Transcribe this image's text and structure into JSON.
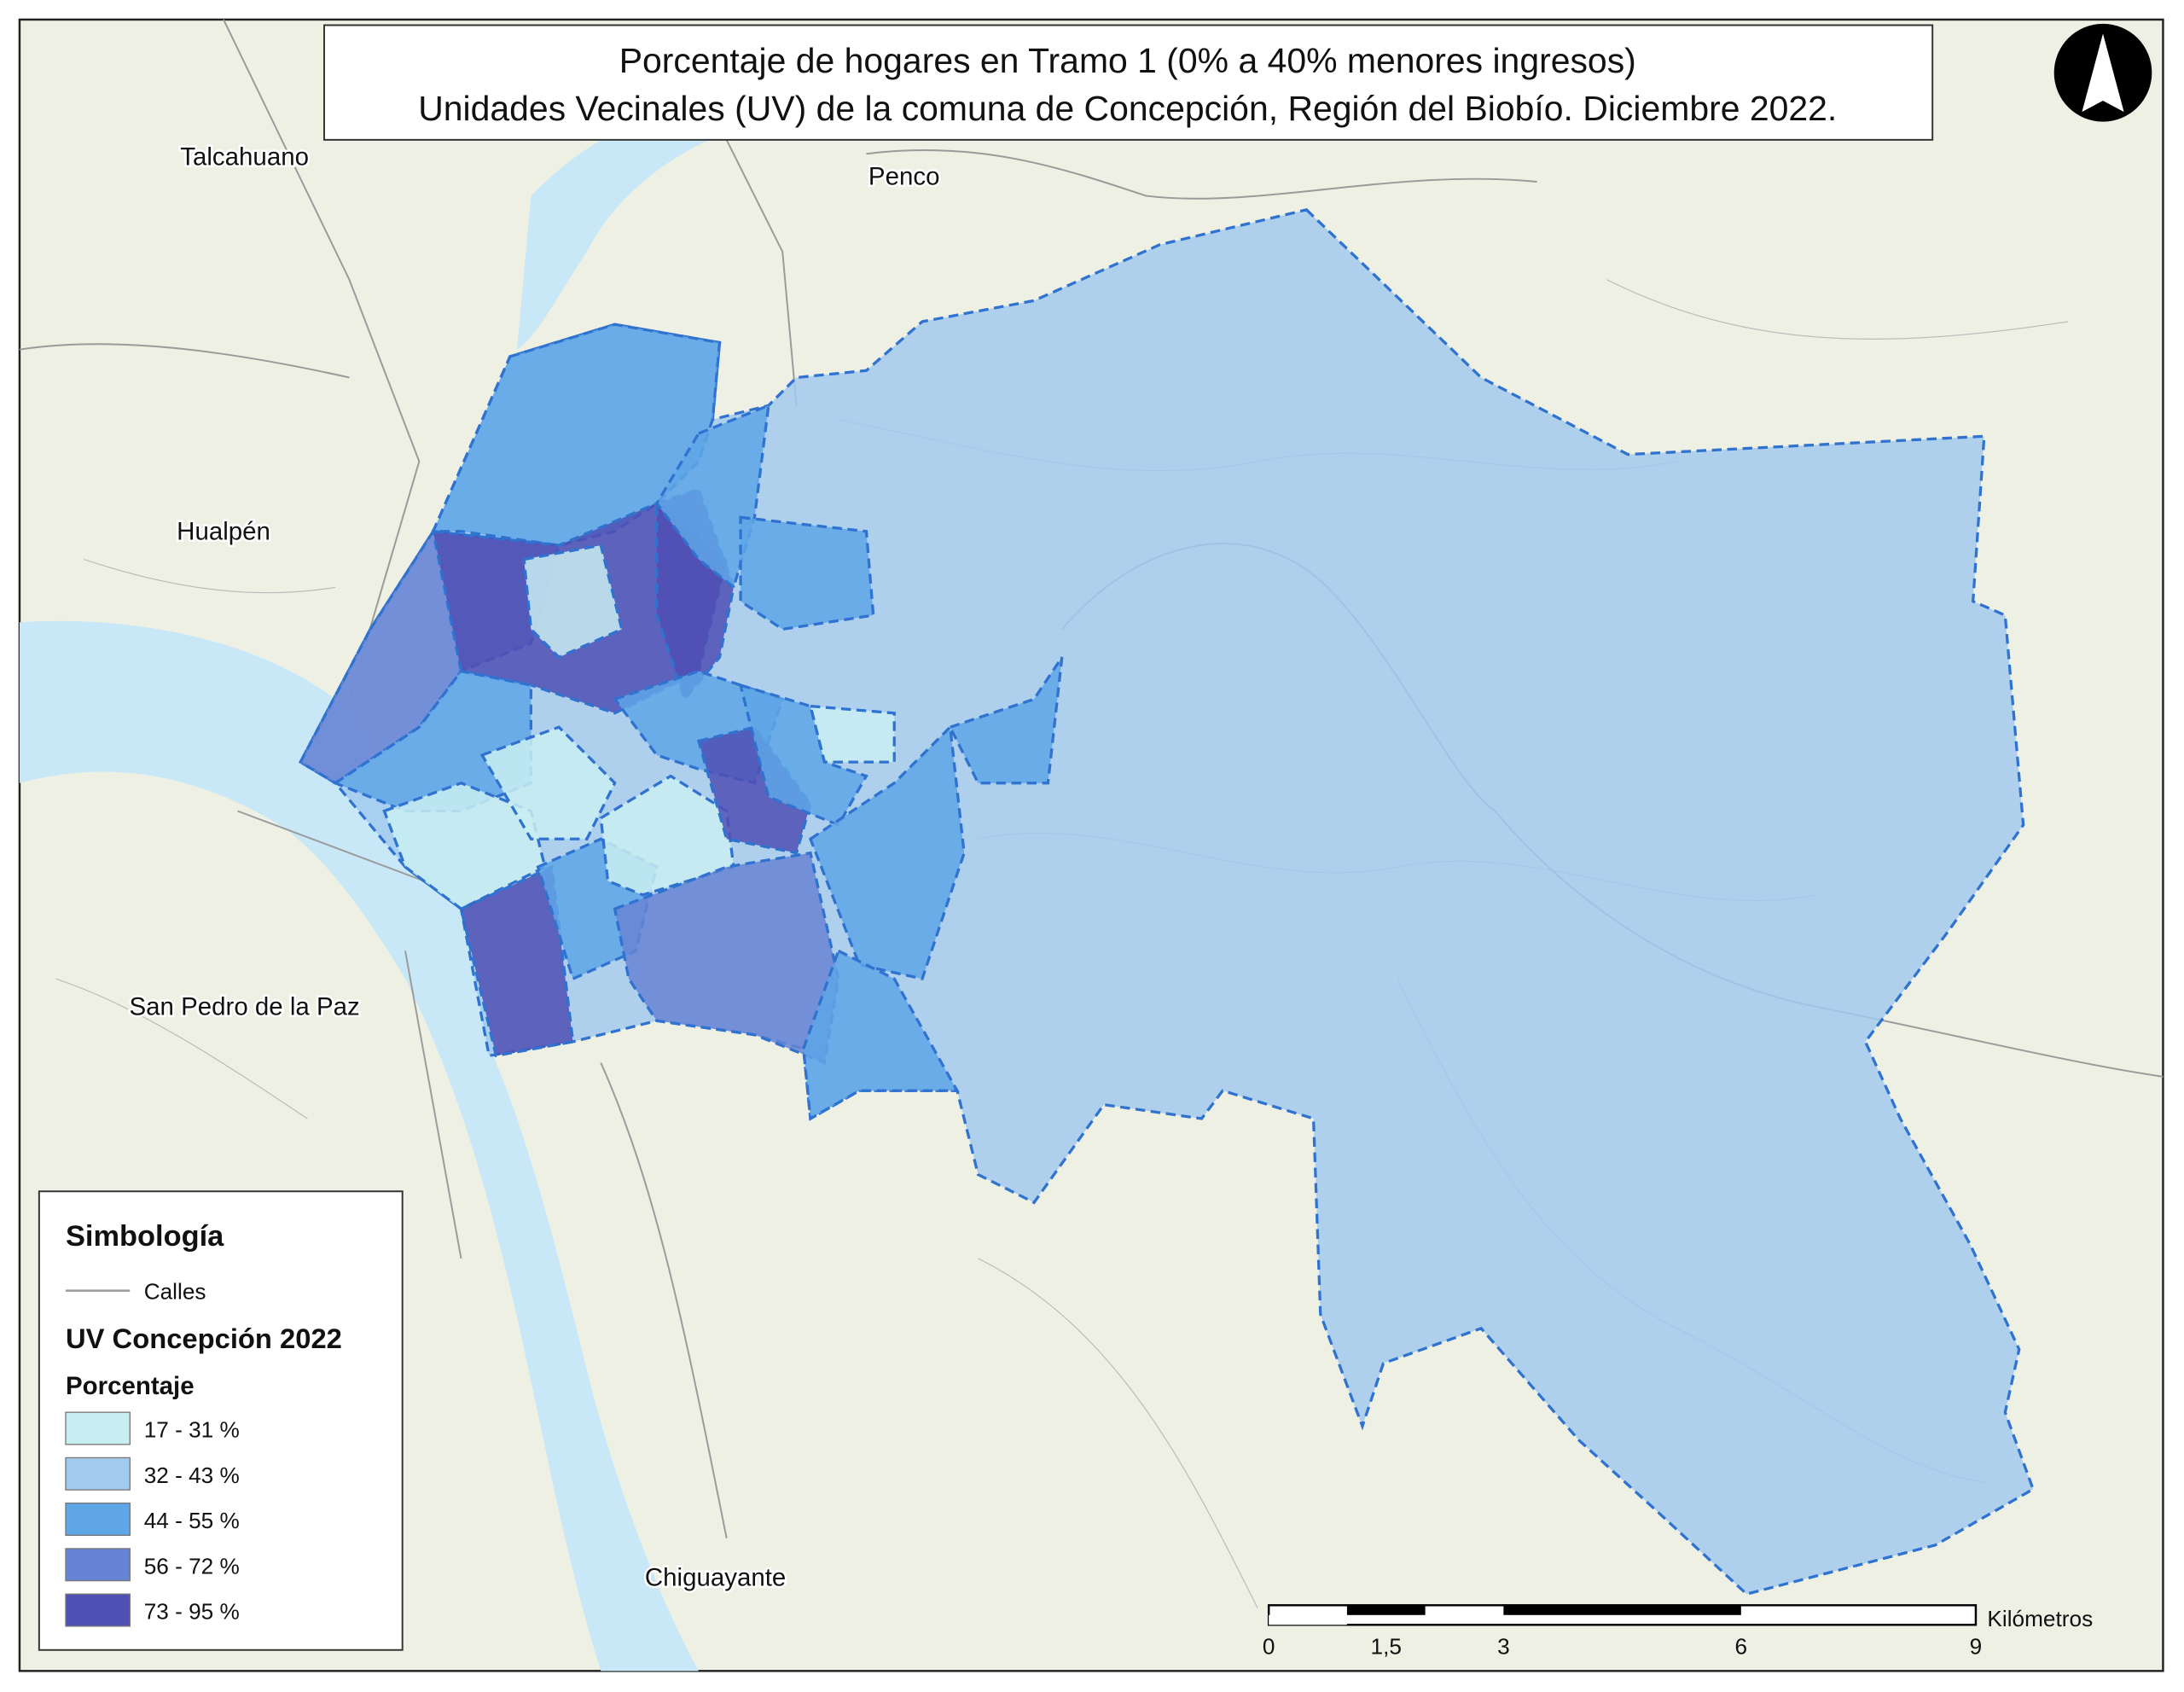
{
  "title": {
    "line1": "Porcentaje de hogares en Tramo 1 (0% a 40% menores ingresos)",
    "line2": "Unidades Vecinales (UV) de la comuna de Concepción, Región del Biobío. Diciembre 2022."
  },
  "places": [
    "Talcahuano",
    "Penco",
    "Hualpén",
    "San Pedro de la Paz",
    "Chiguayante"
  ],
  "legend": {
    "title": "Simbología",
    "streets": "Calles",
    "layer": "UV Concepción 2022",
    "field": "Porcentaje",
    "classes": [
      {
        "label": "17 - 31 %",
        "color": "#c9eef2"
      },
      {
        "label": "32 - 43 %",
        "color": "#a2caee"
      },
      {
        "label": "44 - 55 %",
        "color": "#5ea6e6"
      },
      {
        "label": "56 - 72 %",
        "color": "#6784d4"
      },
      {
        "label": "73 - 95 %",
        "color": "#4f4fb4"
      }
    ]
  },
  "scale_bar": {
    "ticks": [
      "0",
      "1,5",
      "3",
      "6",
      "9"
    ],
    "unit": "Kilómetros"
  }
}
